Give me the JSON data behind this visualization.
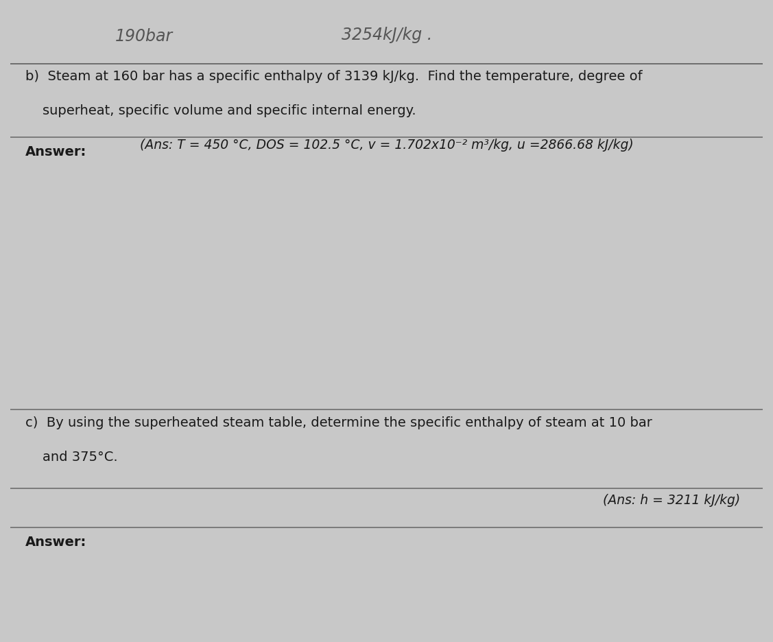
{
  "bg_color": "#c8c8c8",
  "paper_color": "#e2e2e2",
  "handwritten_line1": "190bar",
  "handwritten_line2": "3254kJ/kg .",
  "section_b_text1": "b)  Steam at 160 bar has a specific enthalpy of 3139 kJ/kg.  Find the temperature, degree of",
  "section_b_text2": "    superheat, specific volume and specific internal energy.",
  "section_b_ans": "(Ans: T = 450 °C, DOS = 102.5 °C, v = 1.702x10⁻² m³/kg, u =2866.68 kJ/kg)",
  "answer_label1": "Answer:",
  "section_c_text1": "c)  By using the superheated steam table, determine the specific enthalpy of steam at 10 bar",
  "section_c_text2": "    and 375°C.",
  "section_c_ans": "(Ans: h = 3211 kJ/kg)",
  "answer_label2": "Answer:",
  "font_size_main": 14,
  "font_size_ans": 13.5,
  "font_size_handwritten": 17,
  "font_size_answer_label": 14,
  "line_color": "#666666",
  "text_color": "#1a1a1a",
  "handwritten_color": "#555555"
}
